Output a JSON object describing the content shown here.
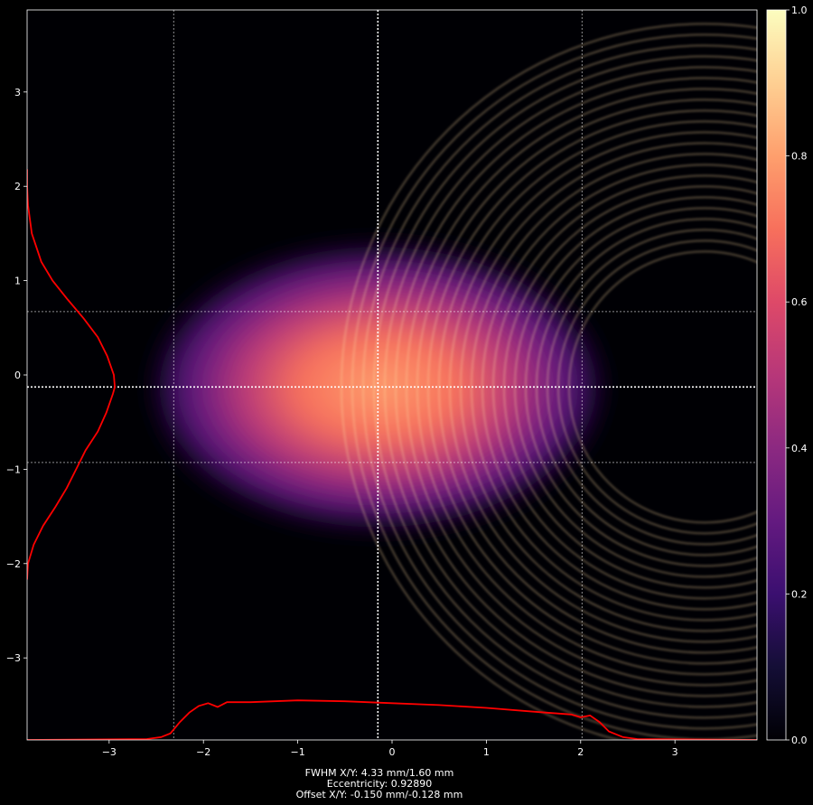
{
  "chart_data": {
    "type": "heatmap",
    "title": "",
    "xlabel": "",
    "ylabel": "",
    "xlim": [
      -3.87,
      3.87
    ],
    "ylim": [
      -3.87,
      3.87
    ],
    "x_ticks": [
      -3,
      -2,
      -1,
      0,
      1,
      2,
      3
    ],
    "y_ticks": [
      -3,
      -2,
      -1,
      0,
      1,
      2,
      3
    ],
    "x_tick_labels": [
      "−3",
      "−2",
      "−1",
      "0",
      "1",
      "2",
      "3"
    ],
    "y_tick_labels": [
      "−3",
      "−2",
      "−1",
      "0",
      "1",
      "2",
      "3"
    ],
    "colormap": "magma",
    "colorbar": {
      "range": [
        0.0,
        1.0
      ],
      "ticks": [
        0.0,
        0.2,
        0.4,
        0.6,
        0.8,
        1.0
      ],
      "tick_labels": [
        "0.0",
        "0.2",
        "0.4",
        "0.6",
        "0.8",
        "1.0"
      ]
    },
    "beam": {
      "center_x": -0.15,
      "center_y": -0.128,
      "fwhm_x": 4.33,
      "fwhm_y": 1.6,
      "peak_intensity": 0.75
    },
    "guide_lines": {
      "vertical": [
        -2.315,
        -0.15,
        2.015
      ],
      "horizontal": [
        0.672,
        -0.128,
        -0.928
      ],
      "center_lines_bold": true
    },
    "horizontal_profile": {
      "color": "#ff0000",
      "x": [
        -3.87,
        -2.6,
        -2.45,
        -2.35,
        -2.25,
        -2.15,
        -2.05,
        -1.95,
        -1.85,
        -1.75,
        -1.5,
        -1.0,
        -0.5,
        0.0,
        0.5,
        1.0,
        1.5,
        1.9,
        2.0,
        2.1,
        2.2,
        2.3,
        2.45,
        2.6,
        3.87
      ],
      "y": [
        -3.87,
        -3.86,
        -3.84,
        -3.8,
        -3.68,
        -3.58,
        -3.51,
        -3.48,
        -3.52,
        -3.47,
        -3.47,
        -3.45,
        -3.46,
        -3.48,
        -3.5,
        -3.53,
        -3.57,
        -3.6,
        -3.63,
        -3.61,
        -3.68,
        -3.78,
        -3.84,
        -3.86,
        -3.87
      ]
    },
    "vertical_profile": {
      "color": "#ff0000",
      "y": [
        -2.17,
        -2.0,
        -1.8,
        -1.6,
        -1.4,
        -1.2,
        -1.0,
        -0.8,
        -0.6,
        -0.4,
        -0.2,
        -0.128,
        0.0,
        0.2,
        0.4,
        0.6,
        0.8,
        1.0,
        1.2,
        1.5,
        1.8,
        2.0,
        2.18
      ],
      "x": [
        -3.87,
        -3.86,
        -3.8,
        -3.7,
        -3.57,
        -3.45,
        -3.35,
        -3.25,
        -3.12,
        -3.03,
        -2.96,
        -2.94,
        -2.95,
        -3.02,
        -3.12,
        -3.27,
        -3.44,
        -3.6,
        -3.72,
        -3.82,
        -3.86,
        -3.87,
        -3.87
      ]
    },
    "annotations": [
      "FWHM X/Y: 4.33 mm/1.60 mm",
      "Eccentricity: 0.92890",
      "Offset X/Y: -0.150 mm/-0.128 mm"
    ]
  }
}
